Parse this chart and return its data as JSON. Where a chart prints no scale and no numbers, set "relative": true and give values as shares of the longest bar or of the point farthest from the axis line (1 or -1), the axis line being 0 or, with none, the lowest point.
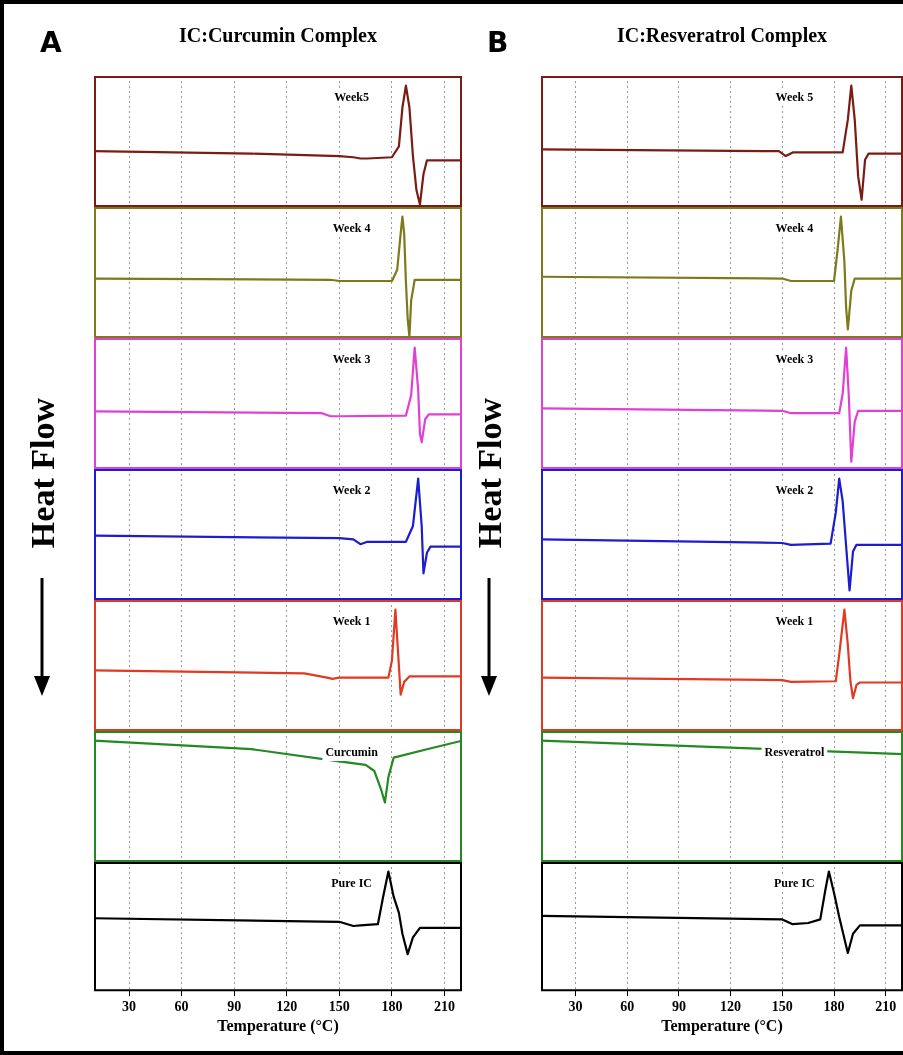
{
  "chart_data": [
    {
      "type": "line",
      "title": "IC:Curcumin Complex",
      "annotations": [
        "A",
        "Week5"
      ],
      "x": [
        10,
        100,
        150,
        158,
        162,
        166,
        180,
        184,
        186,
        188,
        190,
        192,
        194,
        196,
        198,
        200,
        220
      ],
      "series": [
        {
          "color": "#7b1c14",
          "values": [
            0.46,
            0.44,
            0.42,
            0.41,
            0.4,
            0.4,
            0.41,
            0.5,
            0.82,
            1,
            0.82,
            0.42,
            0.14,
            0.02,
            0.27,
            0.385,
            0.385
          ]
        }
      ],
      "relative": true,
      "xlim": [
        10,
        220
      ],
      "xticks": [
        30,
        60,
        90,
        120,
        150,
        180,
        210
      ],
      "grid": "x",
      "tick_labels": false
    },
    {
      "type": "line",
      "annotations": [
        "Week 4"
      ],
      "x": [
        10,
        145,
        150,
        180,
        183,
        185,
        186,
        187,
        188,
        189,
        190,
        191,
        193,
        220
      ],
      "series": [
        {
          "color": "#7d7a1c",
          "values": [
            0.49,
            0.48,
            0.47,
            0.47,
            0.56,
            0.86,
            1,
            0.86,
            0.46,
            0.16,
            0.01,
            0.31,
            0.48,
            0.48
          ]
        }
      ],
      "relative": true,
      "xlim": [
        10,
        220
      ],
      "xticks": [
        30,
        60,
        90,
        120,
        150,
        180,
        210
      ],
      "grid": "x",
      "tick_labels": false
    },
    {
      "type": "line",
      "ylabel": "Heat Flow",
      "annotations": [
        "Week 3"
      ],
      "x": [
        10,
        140,
        145,
        150,
        188,
        191,
        193,
        195,
        196,
        197,
        199,
        201,
        220
      ],
      "series": [
        {
          "color": "#e040d4",
          "values": [
            0.475,
            0.46,
            0.435,
            0.435,
            0.44,
            0.61,
            1,
            0.65,
            0.29,
            0.22,
            0.41,
            0.45,
            0.45
          ]
        }
      ],
      "relative": true,
      "xlim": [
        10,
        220
      ],
      "xticks": [
        30,
        60,
        90,
        120,
        150,
        180,
        210
      ],
      "grid": "x",
      "tick_labels": false
    },
    {
      "type": "line",
      "annotations": [
        "Week 2"
      ],
      "x": [
        10,
        150,
        158,
        162,
        166,
        188,
        192,
        195,
        197,
        198,
        200,
        202,
        220
      ],
      "series": [
        {
          "color": "#1c1cd0",
          "values": [
            0.53,
            0.51,
            0.5,
            0.46,
            0.48,
            0.48,
            0.61,
            1,
            0.61,
            0.22,
            0.39,
            0.44,
            0.44
          ]
        }
      ],
      "relative": true,
      "xlim": [
        10,
        220
      ],
      "xticks": [
        30,
        60,
        90,
        120,
        150,
        180,
        210
      ],
      "grid": "x",
      "tick_labels": false
    },
    {
      "type": "line",
      "annotations": [
        "Week 1"
      ],
      "x": [
        10,
        130,
        143,
        146,
        150,
        178,
        180,
        182,
        183.5,
        185,
        187,
        190,
        220
      ],
      "series": [
        {
          "color": "#e03a22",
          "values": [
            0.5,
            0.475,
            0.44,
            0.43,
            0.44,
            0.44,
            0.58,
            1,
            0.65,
            0.3,
            0.405,
            0.45,
            0.45
          ]
        }
      ],
      "relative": true,
      "xlim": [
        10,
        220
      ],
      "xticks": [
        30,
        60,
        90,
        120,
        150,
        180,
        210
      ],
      "grid": "x",
      "tick_labels": false
    },
    {
      "type": "line",
      "annotations": [
        "Curcumin"
      ],
      "x": [
        10,
        100,
        150,
        165,
        170,
        174,
        176,
        178,
        181,
        200,
        220
      ],
      "series": [
        {
          "color": "#238a23",
          "values": [
            1,
            0.93,
            0.83,
            0.8,
            0.75,
            0.59,
            0.49,
            0.7,
            0.86,
            0.93,
            1
          ]
        }
      ],
      "relative": true,
      "xlim": [
        10,
        220
      ],
      "xticks": [
        30,
        60,
        90,
        120,
        150,
        180,
        210
      ],
      "grid": "x",
      "tick_labels": false
    },
    {
      "type": "line",
      "annotations": [
        "Pure IC"
      ],
      "xlabel": "Temperature (°C)",
      "x": [
        10,
        150,
        158,
        162,
        172,
        175,
        178,
        181,
        184,
        186,
        189,
        192,
        196,
        220
      ],
      "series": [
        {
          "color": "#000000",
          "values": [
            0.61,
            0.58,
            0.545,
            0.55,
            0.56,
            0.79,
            1,
            0.79,
            0.655,
            0.48,
            0.31,
            0.45,
            0.53,
            0.53
          ]
        }
      ],
      "relative": true,
      "xlim": [
        10,
        220
      ],
      "xticks": [
        30,
        60,
        90,
        120,
        150,
        180,
        210
      ],
      "grid": "x",
      "tick_labels": "x"
    },
    {
      "type": "line",
      "title": "IC:Resveratrol Complex",
      "annotations": [
        "B",
        "Week 5"
      ],
      "x": [
        10,
        148,
        152,
        156,
        185,
        188,
        190,
        192,
        194,
        196,
        198,
        200,
        220
      ],
      "series": [
        {
          "color": "#7b1c14",
          "values": [
            0.475,
            0.46,
            0.42,
            0.45,
            0.45,
            0.72,
            1,
            0.72,
            0.25,
            0.06,
            0.39,
            0.44,
            0.44
          ]
        }
      ],
      "relative": true,
      "xlim": [
        10,
        220
      ],
      "xticks": [
        30,
        60,
        90,
        120,
        150,
        180,
        210
      ],
      "grid": "x",
      "tick_labels": false
    },
    {
      "type": "line",
      "annotations": [
        "Week 4"
      ],
      "x": [
        10,
        150,
        155,
        180,
        182,
        184,
        186,
        187,
        188,
        190,
        192,
        220
      ],
      "series": [
        {
          "color": "#7d7a1c",
          "values": [
            0.505,
            0.49,
            0.47,
            0.47,
            0.72,
            1,
            0.63,
            0.25,
            0.07,
            0.39,
            0.49,
            0.49
          ]
        }
      ],
      "relative": true,
      "xlim": [
        10,
        220
      ],
      "xticks": [
        30,
        60,
        90,
        120,
        150,
        180,
        210
      ],
      "grid": "x",
      "tick_labels": false
    },
    {
      "type": "line",
      "ylabel": "Heat Flow",
      "annotations": [
        "Week 3"
      ],
      "x": [
        10,
        150,
        155,
        183,
        185,
        187,
        188.5,
        190,
        192,
        194,
        220
      ],
      "series": [
        {
          "color": "#e040d4",
          "values": [
            0.5,
            0.48,
            0.46,
            0.46,
            0.62,
            1,
            0.62,
            0.06,
            0.39,
            0.48,
            0.48
          ]
        }
      ],
      "relative": true,
      "xlim": [
        10,
        220
      ],
      "xticks": [
        30,
        60,
        90,
        120,
        150,
        180,
        210
      ],
      "grid": "x",
      "tick_labels": false
    },
    {
      "type": "line",
      "annotations": [
        "Week 2"
      ],
      "x": [
        10,
        150,
        155,
        178,
        181,
        183,
        185,
        187,
        189,
        191,
        193,
        220
      ],
      "series": [
        {
          "color": "#1c1cd0",
          "values": [
            0.5,
            0.47,
            0.455,
            0.465,
            0.72,
            1,
            0.815,
            0.445,
            0.08,
            0.4,
            0.455,
            0.455
          ]
        }
      ],
      "relative": true,
      "xlim": [
        10,
        220
      ],
      "xticks": [
        30,
        60,
        90,
        120,
        150,
        180,
        210
      ],
      "grid": "x",
      "tick_labels": false
    },
    {
      "type": "line",
      "annotations": [
        "Week 1"
      ],
      "x": [
        10,
        150,
        155,
        181,
        183,
        186,
        188,
        189.5,
        191,
        193,
        195,
        220
      ],
      "series": [
        {
          "color": "#e03a22",
          "values": [
            0.44,
            0.42,
            0.405,
            0.41,
            0.63,
            1,
            0.71,
            0.41,
            0.27,
            0.38,
            0.4,
            0.4
          ]
        }
      ],
      "relative": true,
      "xlim": [
        10,
        220
      ],
      "xticks": [
        30,
        60,
        90,
        120,
        150,
        180,
        210
      ],
      "grid": "x",
      "tick_labels": false
    },
    {
      "type": "line",
      "annotations": [
        "Resveratrol"
      ],
      "x": [
        10,
        220
      ],
      "series": [
        {
          "color": "#238a23",
          "values": [
            1,
            0.89
          ]
        }
      ],
      "relative": true,
      "xlim": [
        10,
        220
      ],
      "xticks": [
        30,
        60,
        90,
        120,
        150,
        180,
        210
      ],
      "grid": "x",
      "tick_labels": false
    },
    {
      "type": "line",
      "annotations": [
        "Pure IC"
      ],
      "xlabel": "Temperature (°C)",
      "x": [
        10,
        150,
        156,
        165,
        172,
        175,
        177,
        180,
        183,
        188,
        191,
        195,
        220
      ],
      "series": [
        {
          "color": "#000000",
          "values": [
            0.63,
            0.6,
            0.56,
            0.57,
            0.6,
            0.85,
            1,
            0.82,
            0.62,
            0.32,
            0.48,
            0.55,
            0.55
          ]
        }
      ],
      "relative": true,
      "xlim": [
        10,
        220
      ],
      "xticks": [
        30,
        60,
        90,
        120,
        150,
        180,
        210
      ],
      "grid": "x",
      "tick_labels": "x"
    }
  ]
}
